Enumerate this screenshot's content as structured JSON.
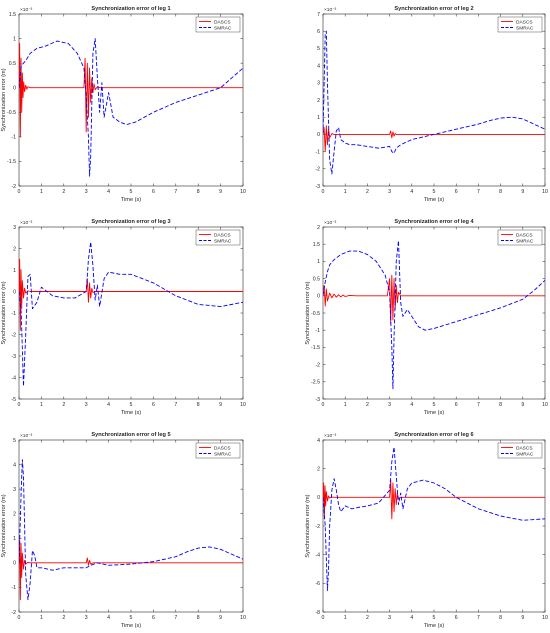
{
  "colors": {
    "dascs": "#ff0000",
    "smrac": "#0000ff",
    "axis": "#262626",
    "background": "#ffffff"
  },
  "chart_data": [
    {
      "type": "line",
      "title": "Synchronization error of leg 1",
      "xlabel": "Time (s)",
      "ylabel": "Synchronization error (m)",
      "exponent": "×10⁻³",
      "xlim": [
        0,
        10
      ],
      "ylim": [
        -2,
        1.5
      ],
      "xticks": [
        0,
        1,
        2,
        3,
        4,
        5,
        6,
        7,
        8,
        9,
        10
      ],
      "yticks": [
        -2,
        -1.5,
        -1,
        -0.5,
        0,
        0.5,
        1,
        1.5
      ],
      "legend": {
        "position": "top-right",
        "entries": [
          "DASCS",
          "SMRAC"
        ]
      },
      "series": [
        {
          "name": "DASCS",
          "color": "#ff0000",
          "style": "solid",
          "x": [
            0,
            0.03,
            0.06,
            0.09,
            0.12,
            0.15,
            0.18,
            0.21,
            0.25,
            0.3,
            0.35,
            0.4,
            0.5,
            0.6,
            1,
            2,
            2.9,
            2.95,
            3.0,
            3.05,
            3.1,
            3.15,
            3.2,
            3.25,
            3.3,
            3.35,
            3.4,
            3.5,
            3.6,
            4,
            6,
            8,
            10
          ],
          "y": [
            0,
            0.9,
            -1.0,
            0.6,
            -0.5,
            0.3,
            -0.2,
            0.12,
            -0.08,
            0.05,
            -0.03,
            0.02,
            0,
            0,
            0,
            0,
            0,
            0.6,
            -0.9,
            0.5,
            -0.6,
            0.4,
            -0.3,
            0.2,
            -0.1,
            0.08,
            -0.04,
            0.02,
            0,
            0,
            0,
            0,
            0
          ]
        },
        {
          "name": "SMRAC",
          "color": "#0000ff",
          "style": "dashed",
          "x": [
            0,
            0.1,
            0.2,
            0.3,
            0.5,
            0.8,
            1.2,
            1.7,
            2.2,
            2.6,
            2.9,
            3.0,
            3.1,
            3.15,
            3.2,
            3.3,
            3.4,
            3.5,
            3.6,
            3.7,
            3.8,
            4.0,
            4.2,
            4.5,
            4.8,
            5.2,
            5.6,
            6,
            6.5,
            7,
            8,
            9,
            10
          ],
          "y": [
            0,
            0.45,
            0.5,
            0.55,
            0.7,
            0.8,
            0.85,
            0.95,
            0.9,
            0.7,
            0.4,
            -0.2,
            -1.0,
            -1.8,
            -1.4,
            0.7,
            1.0,
            0.2,
            -0.5,
            0.1,
            -0.6,
            -0.1,
            -0.6,
            -0.7,
            -0.75,
            -0.7,
            -0.6,
            -0.5,
            -0.4,
            -0.3,
            -0.15,
            0,
            0.4
          ]
        }
      ]
    },
    {
      "type": "line",
      "title": "Synchronization error of leg 2",
      "xlabel": "Time (s)",
      "ylabel": "",
      "exponent": "×10⁻³",
      "xlim": [
        0,
        10
      ],
      "ylim": [
        -3,
        7
      ],
      "xticks": [
        0,
        1,
        2,
        3,
        4,
        5,
        6,
        7,
        8,
        9,
        10
      ],
      "yticks": [
        -3,
        -2,
        -1,
        0,
        1,
        2,
        3,
        4,
        5,
        6,
        7
      ],
      "legend": {
        "position": "top-right",
        "entries": [
          "DASCS",
          "SMRAC"
        ]
      },
      "series": [
        {
          "name": "DASCS",
          "color": "#ff0000",
          "style": "solid",
          "x": [
            0,
            0.05,
            0.1,
            0.15,
            0.2,
            0.25,
            0.3,
            0.4,
            0.5,
            1,
            2,
            3.0,
            3.05,
            3.1,
            3.15,
            3.2,
            3.25,
            3.3,
            3.4,
            4,
            6,
            8,
            10
          ],
          "y": [
            0,
            0.4,
            -1.0,
            0.5,
            -0.6,
            0.3,
            -0.2,
            0.05,
            0,
            0,
            0,
            0,
            0.2,
            -0.2,
            0.15,
            -0.1,
            0.05,
            0,
            0,
            0,
            0,
            0,
            0
          ]
        },
        {
          "name": "SMRAC",
          "color": "#0000ff",
          "style": "dashed",
          "x": [
            0,
            0.1,
            0.15,
            0.2,
            0.3,
            0.4,
            0.5,
            0.6,
            0.7,
            0.8,
            1,
            1.2,
            1.5,
            2,
            2.5,
            3,
            3.1,
            3.2,
            3.3,
            3.5,
            4,
            5,
            6,
            7,
            7.5,
            8,
            8.5,
            9,
            9.5,
            10
          ],
          "y": [
            0,
            5.8,
            6.0,
            3.0,
            -1.5,
            -2.3,
            -1.0,
            0.2,
            0.4,
            -0.3,
            -0.5,
            -0.6,
            -0.6,
            -0.7,
            -0.8,
            -0.7,
            -1.0,
            -1.1,
            -0.8,
            -0.6,
            -0.3,
            0.0,
            0.3,
            0.6,
            0.8,
            0.95,
            1.0,
            0.9,
            0.6,
            0.3
          ]
        }
      ]
    },
    {
      "type": "line",
      "title": "Synchronization error of leg 3",
      "xlabel": "Time (s)",
      "ylabel": "Synchronization error (m)",
      "exponent": "×10⁻³",
      "xlim": [
        0,
        10
      ],
      "ylim": [
        -5,
        3
      ],
      "xticks": [
        0,
        1,
        2,
        3,
        4,
        5,
        6,
        7,
        8,
        9,
        10
      ],
      "yticks": [
        -5,
        -4,
        -3,
        -2,
        -1,
        0,
        1,
        2,
        3
      ],
      "legend": {
        "position": "top-right",
        "entries": [
          "DASCS",
          "SMRAC"
        ]
      },
      "series": [
        {
          "name": "DASCS",
          "color": "#ff0000",
          "style": "solid",
          "x": [
            0,
            0.03,
            0.06,
            0.09,
            0.12,
            0.15,
            0.2,
            0.25,
            0.3,
            0.4,
            0.5,
            1,
            2,
            3.0,
            3.05,
            3.1,
            3.15,
            3.2,
            3.25,
            3.3,
            3.4,
            4,
            6,
            8,
            10
          ],
          "y": [
            0,
            1.5,
            -1.8,
            1.0,
            -0.8,
            0.5,
            -0.3,
            0.15,
            -0.08,
            0.03,
            0,
            0,
            0,
            0,
            0.6,
            -0.5,
            0.4,
            -0.3,
            0.15,
            -0.05,
            0,
            0,
            0,
            0,
            0
          ]
        },
        {
          "name": "SMRAC",
          "color": "#0000ff",
          "style": "dashed",
          "x": [
            0,
            0.1,
            0.2,
            0.3,
            0.4,
            0.5,
            0.6,
            0.8,
            1,
            1.5,
            2,
            2.5,
            3,
            3.1,
            3.2,
            3.3,
            3.4,
            3.5,
            3.6,
            3.8,
            4,
            4.5,
            5,
            5.5,
            6,
            6.5,
            7,
            8,
            9,
            10
          ],
          "y": [
            0,
            -1.0,
            -4.4,
            -2.0,
            0.7,
            0.8,
            -0.8,
            -0.5,
            0.2,
            -0.2,
            -0.3,
            -0.3,
            0,
            1.5,
            2.3,
            1.2,
            -0.4,
            0.3,
            -0.7,
            0.6,
            0.9,
            0.8,
            0.8,
            0.6,
            0.4,
            0.1,
            -0.2,
            -0.6,
            -0.7,
            -0.5
          ]
        }
      ]
    },
    {
      "type": "line",
      "title": "Synchronization error of leg 4",
      "xlabel": "Time (s)",
      "ylabel": "Synchronization error (m)",
      "exponent": "×10⁻³",
      "xlim": [
        0,
        10
      ],
      "ylim": [
        -3,
        2
      ],
      "xticks": [
        0,
        1,
        2,
        3,
        4,
        5,
        6,
        7,
        8,
        9,
        10
      ],
      "yticks": [
        -3,
        -2.5,
        -2,
        -1.5,
        -1,
        -0.5,
        0,
        0.5,
        1,
        1.5,
        2
      ],
      "legend": {
        "position": "top-right",
        "entries": [
          "DASCS",
          "SMRAC"
        ]
      },
      "series": [
        {
          "name": "DASCS",
          "color": "#ff0000",
          "style": "solid",
          "x": [
            0,
            0.05,
            0.1,
            0.15,
            0.2,
            0.3,
            0.4,
            0.5,
            0.6,
            0.7,
            0.8,
            0.9,
            1.0,
            1.2,
            1.5,
            2,
            2.9,
            3.0,
            3.05,
            3.1,
            3.15,
            3.2,
            3.25,
            3.3,
            3.35,
            3.4,
            3.5,
            4,
            6,
            8,
            10
          ],
          "y": [
            0,
            0.3,
            -0.3,
            0.2,
            -0.15,
            0.08,
            -0.06,
            0.05,
            -0.04,
            0.03,
            -0.03,
            0.02,
            -0.02,
            0.01,
            0,
            0,
            0,
            0.5,
            -0.8,
            0.6,
            -0.7,
            0.5,
            -0.4,
            0.3,
            -0.2,
            0.1,
            0,
            0,
            0,
            0,
            0
          ]
        },
        {
          "name": "SMRAC",
          "color": "#0000ff",
          "style": "dashed",
          "x": [
            0,
            0.1,
            0.2,
            0.3,
            0.5,
            0.8,
            1.2,
            1.6,
            2.0,
            2.4,
            2.8,
            3.0,
            3.1,
            3.15,
            3.2,
            3.3,
            3.4,
            3.5,
            3.6,
            3.8,
            4.0,
            4.3,
            4.6,
            5.0,
            5.5,
            6.0,
            7.0,
            8.0,
            9.0,
            9.5,
            10
          ],
          "y": [
            0,
            0.4,
            0.7,
            0.9,
            1.05,
            1.2,
            1.3,
            1.3,
            1.2,
            1.0,
            0.6,
            0.1,
            -1.5,
            -2.7,
            -1.2,
            1.0,
            1.6,
            -0.2,
            -0.6,
            -0.4,
            -0.6,
            -0.9,
            -1.0,
            -0.95,
            -0.85,
            -0.75,
            -0.55,
            -0.35,
            -0.1,
            0.15,
            0.45
          ]
        }
      ]
    },
    {
      "type": "line",
      "title": "Synchronization error of leg 5",
      "xlabel": "Time (s)",
      "ylabel": "Synchronization error (m)",
      "exponent": "×10⁻³",
      "xlim": [
        0,
        10
      ],
      "ylim": [
        -2,
        5
      ],
      "xticks": [
        0,
        1,
        2,
        3,
        4,
        5,
        6,
        7,
        8,
        9,
        10
      ],
      "yticks": [
        -2,
        -1,
        0,
        1,
        2,
        3,
        4,
        5
      ],
      "legend": {
        "position": "top-right",
        "entries": [
          "DASCS",
          "SMRAC"
        ]
      },
      "series": [
        {
          "name": "DASCS",
          "color": "#ff0000",
          "style": "solid",
          "x": [
            0,
            0.03,
            0.06,
            0.09,
            0.12,
            0.15,
            0.2,
            0.25,
            0.3,
            0.4,
            0.5,
            1,
            2,
            3.0,
            3.05,
            3.1,
            3.15,
            3.2,
            3.3,
            4,
            6,
            8,
            10
          ],
          "y": [
            0,
            1.0,
            -1.5,
            0.8,
            -0.6,
            0.4,
            -0.25,
            0.1,
            -0.05,
            0.02,
            0,
            0,
            0,
            0,
            0.2,
            -0.1,
            0.1,
            -0.05,
            0,
            0,
            0,
            0,
            0
          ]
        },
        {
          "name": "SMRAC",
          "color": "#0000ff",
          "style": "dashed",
          "x": [
            0,
            0.1,
            0.15,
            0.2,
            0.3,
            0.4,
            0.5,
            0.6,
            0.7,
            0.8,
            1.0,
            1.5,
            2.0,
            2.5,
            3.0,
            3.2,
            3.5,
            4.0,
            5.0,
            6.0,
            7.0,
            7.5,
            8.0,
            8.5,
            9.0,
            9.5,
            10
          ],
          "y": [
            0,
            3.0,
            4.2,
            3.5,
            -0.5,
            -1.5,
            -0.8,
            0.5,
            0.3,
            -0.2,
            -0.2,
            -0.3,
            -0.2,
            -0.2,
            -0.2,
            -0.1,
            0,
            -0.1,
            -0.05,
            0.05,
            0.25,
            0.45,
            0.6,
            0.65,
            0.55,
            0.35,
            0.15
          ]
        }
      ]
    },
    {
      "type": "line",
      "title": "Synchronization error of leg 6",
      "xlabel": "Time (s)",
      "ylabel": "Synchronization error (m)",
      "exponent": "×10⁻³",
      "xlim": [
        0,
        10
      ],
      "ylim": [
        -8,
        4
      ],
      "xticks": [
        0,
        1,
        2,
        3,
        4,
        5,
        6,
        7,
        8,
        9,
        10
      ],
      "yticks": [
        -8,
        -6,
        -4,
        -2,
        0,
        2,
        4
      ],
      "legend": {
        "position": "top-right",
        "entries": [
          "DASCS",
          "SMRAC"
        ]
      },
      "series": [
        {
          "name": "DASCS",
          "color": "#ff0000",
          "style": "solid",
          "x": [
            0,
            0.03,
            0.06,
            0.09,
            0.12,
            0.15,
            0.2,
            0.25,
            0.3,
            0.4,
            0.5,
            1,
            2,
            3.0,
            3.05,
            3.1,
            3.15,
            3.2,
            3.25,
            3.3,
            3.35,
            3.4,
            3.5,
            4,
            6,
            8,
            10
          ],
          "y": [
            0,
            1.0,
            -1.5,
            0.8,
            -0.6,
            0.4,
            -0.25,
            0.1,
            -0.05,
            0.02,
            0,
            0,
            0,
            0,
            1.2,
            -1.5,
            1.0,
            -1.0,
            0.6,
            -0.5,
            0.3,
            -0.1,
            0,
            0,
            0,
            0,
            0
          ]
        },
        {
          "name": "SMRAC",
          "color": "#0000ff",
          "style": "dashed",
          "x": [
            0,
            0.1,
            0.2,
            0.25,
            0.3,
            0.4,
            0.5,
            0.6,
            0.7,
            0.8,
            1.0,
            1.3,
            1.6,
            2.0,
            2.5,
            3.0,
            3.1,
            3.2,
            3.3,
            3.4,
            3.5,
            3.6,
            3.8,
            4.0,
            4.5,
            5.0,
            5.5,
            6.0,
            7.0,
            8.0,
            9.0,
            10
          ],
          "y": [
            0,
            -2.0,
            -6.5,
            -5.0,
            -2.0,
            0.5,
            1.3,
            0.5,
            -0.5,
            -1.0,
            -0.6,
            -0.8,
            -0.7,
            -0.6,
            -0.4,
            0.5,
            2.5,
            3.5,
            1.5,
            -0.5,
            0.3,
            -0.8,
            0.6,
            1.0,
            1.2,
            1.0,
            0.6,
            0.0,
            -0.8,
            -1.3,
            -1.6,
            -1.5
          ]
        }
      ]
    }
  ]
}
